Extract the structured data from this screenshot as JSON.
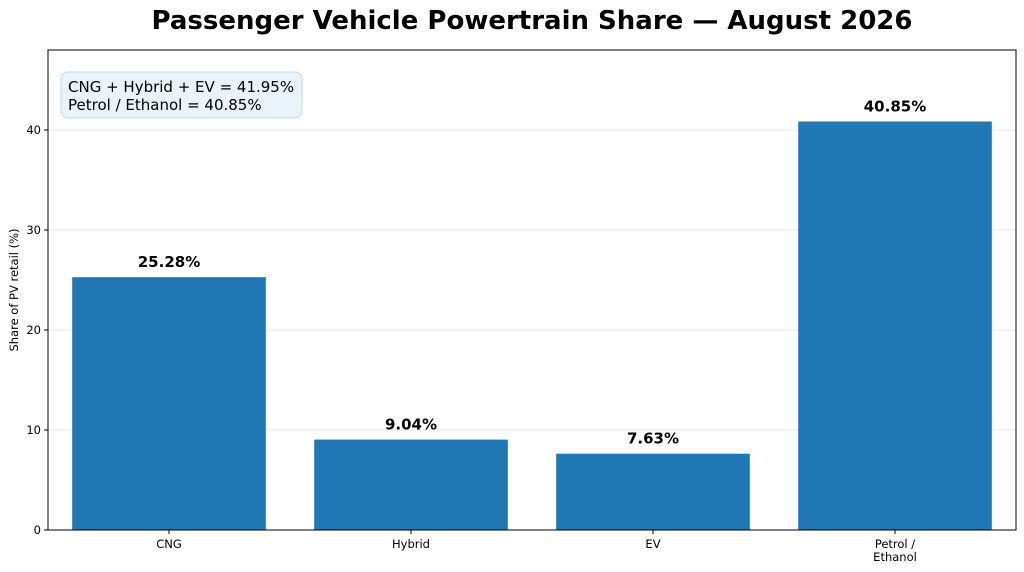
{
  "chart_data": {
    "type": "bar",
    "title": "Passenger Vehicle Powertrain Share — August 2026",
    "xlabel": "",
    "ylabel": "Share of PV retail (%)",
    "categories": [
      [
        "CNG"
      ],
      [
        "Hybrid"
      ],
      [
        "EV"
      ],
      [
        "Petrol /",
        "Ethanol"
      ]
    ],
    "values": [
      25.28,
      9.04,
      7.63,
      40.85
    ],
    "data_labels": [
      "25.28%",
      "9.04%",
      "7.63%",
      "40.85%"
    ],
    "ylim": [
      0,
      48
    ],
    "yticks": [
      0,
      10,
      20,
      30,
      40
    ],
    "grid": "y",
    "bar_color": "#1f77b4",
    "annotation": {
      "lines": [
        "CNG + Hybrid + EV = 41.95%",
        "Petrol / Ethanol = 40.85%"
      ],
      "placement": "top-left"
    }
  }
}
